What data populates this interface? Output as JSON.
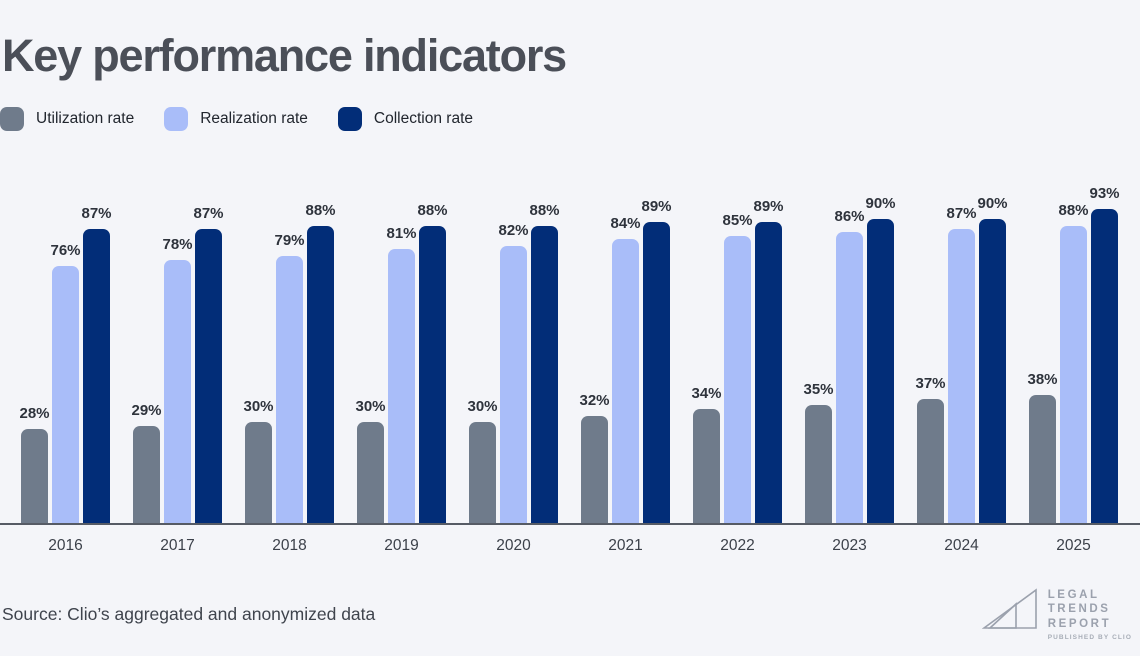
{
  "page": {
    "background": "#f4f5f9"
  },
  "title": "Key performance indicators",
  "legend": {
    "items": [
      {
        "label": "Utilization rate",
        "color": "#6f7b8b"
      },
      {
        "label": "Realization rate",
        "color": "#a9bdf9"
      },
      {
        "label": "Collection rate",
        "color": "#022d78"
      }
    ]
  },
  "chart_data": {
    "type": "bar",
    "grouped": true,
    "title": "Key performance indicators",
    "categories": [
      "2016",
      "2017",
      "2018",
      "2019",
      "2020",
      "2021",
      "2022",
      "2023",
      "2024",
      "2025"
    ],
    "series": [
      {
        "name": "Utilization rate",
        "color": "#6f7b8b",
        "values": [
          28,
          29,
          30,
          30,
          30,
          32,
          34,
          35,
          37,
          38
        ]
      },
      {
        "name": "Realization rate",
        "color": "#a9bdf9",
        "values": [
          76,
          78,
          79,
          81,
          82,
          84,
          85,
          86,
          87,
          88
        ]
      },
      {
        "name": "Collection rate",
        "color": "#022d78",
        "values": [
          87,
          87,
          88,
          88,
          88,
          89,
          89,
          90,
          90,
          93
        ]
      }
    ],
    "value_suffix": "%",
    "ylim": [
      0,
      100
    ],
    "grid": false,
    "data_labels": true,
    "legend_position": "top-left",
    "axis_line_color": "#565b65"
  },
  "source": "Source: Clio’s aggregated and anonymized data",
  "logo": {
    "lines": [
      "LEGAL",
      "TRENDS",
      "REPORT"
    ],
    "tagline": "PUBLISHED BY CLIO"
  }
}
